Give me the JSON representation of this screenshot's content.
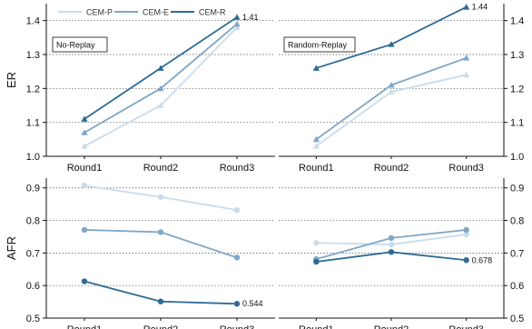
{
  "chart_data": {
    "type": "line",
    "categories": [
      "Round1",
      "Round2",
      "Round3"
    ],
    "legend": [
      {
        "name": "CEM-P",
        "color": "#c9dcea",
        "marker": "circle"
      },
      {
        "name": "CEM-E",
        "color": "#7fa7c6",
        "marker": "triangle"
      },
      {
        "name": "CEM-R",
        "color": "#2d6a95",
        "marker": "triangle"
      }
    ],
    "legend_position": "top-left",
    "grid": "horizontal dotted",
    "panels": [
      {
        "row": "ER",
        "title": "No-Replay",
        "ylabel": "ER",
        "ylim": [
          1.0,
          1.45
        ],
        "yticks": [
          "1.0",
          "1.1",
          "1.2",
          "1.3",
          "1.4"
        ],
        "marker": "triangle",
        "series": [
          {
            "name": "CEM-P",
            "values": [
              1.03,
              1.15,
              1.38
            ]
          },
          {
            "name": "CEM-E",
            "values": [
              1.07,
              1.2,
              1.39
            ]
          },
          {
            "name": "CEM-R",
            "values": [
              1.11,
              1.26,
              1.41
            ]
          }
        ],
        "annotation": {
          "series": "CEM-R",
          "index": 2,
          "text": "1.41"
        }
      },
      {
        "row": "ER",
        "title": "Random-Replay",
        "ylabel": "",
        "ylim": [
          1.0,
          1.45
        ],
        "yticks": [
          "1.0",
          "1.1",
          "1.2",
          "1.3",
          "1.4"
        ],
        "marker": "triangle",
        "series": [
          {
            "name": "CEM-P",
            "values": [
              1.03,
              1.19,
              1.24
            ]
          },
          {
            "name": "CEM-E",
            "values": [
              1.05,
              1.21,
              1.29
            ]
          },
          {
            "name": "CEM-R",
            "values": [
              1.26,
              1.33,
              1.44
            ]
          }
        ],
        "annotation": {
          "series": "CEM-R",
          "index": 2,
          "text": "1.44"
        }
      },
      {
        "row": "AFR",
        "title": "",
        "ylabel": "AFR",
        "ylim": [
          0.5,
          0.93
        ],
        "yticks": [
          "0.5",
          "0.6",
          "0.7",
          "0.8",
          "0.9"
        ],
        "marker": "circle",
        "series": [
          {
            "name": "CEM-P",
            "values": [
              0.907,
              0.872,
              0.832
            ]
          },
          {
            "name": "CEM-E",
            "values": [
              0.771,
              0.764,
              0.686
            ]
          },
          {
            "name": "CEM-R",
            "values": [
              0.613,
              0.551,
              0.544
            ]
          }
        ],
        "annotation": {
          "series": "CEM-R",
          "index": 2,
          "text": "0.544"
        }
      },
      {
        "row": "AFR",
        "title": "",
        "ylabel": "",
        "ylim": [
          0.5,
          0.93
        ],
        "yticks": [
          "0.5",
          "0.6",
          "0.7",
          "0.8",
          "0.9"
        ],
        "marker": "circle",
        "series": [
          {
            "name": "CEM-P",
            "values": [
              0.731,
              0.726,
              0.757
            ]
          },
          {
            "name": "CEM-E",
            "values": [
              0.681,
              0.746,
              0.771
            ]
          },
          {
            "name": "CEM-R",
            "values": [
              0.673,
              0.703,
              0.678
            ]
          }
        ],
        "annotation": {
          "series": "CEM-R",
          "index": 2,
          "text": "0.678"
        }
      }
    ]
  }
}
